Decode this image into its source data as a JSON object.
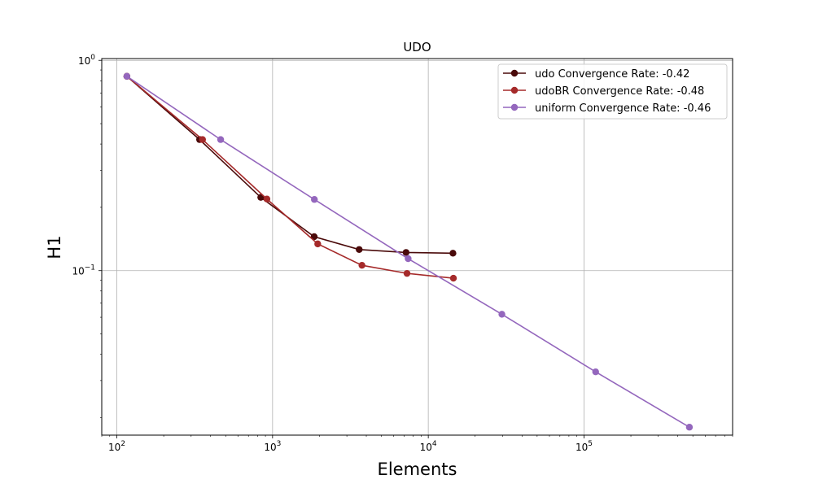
{
  "chart_data": {
    "type": "line",
    "title": "UDO",
    "xlabel": "Elements",
    "ylabel": "H1",
    "xscale": "log",
    "yscale": "log",
    "xlim": [
      80,
      900000
    ],
    "ylim": [
      0.0165,
      1.02
    ],
    "grid": true,
    "legend_position": "top-right",
    "x_major_ticks": [
      {
        "value": 100,
        "base": "10",
        "exp": "2"
      },
      {
        "value": 1000,
        "base": "10",
        "exp": "3"
      },
      {
        "value": 10000,
        "base": "10",
        "exp": "4"
      },
      {
        "value": 100000,
        "base": "10",
        "exp": "5"
      }
    ],
    "y_major_ticks": [
      {
        "value": 1,
        "base": "10",
        "exp": "0"
      },
      {
        "value": 0.1,
        "base": "10",
        "exp": "−1"
      }
    ],
    "series": [
      {
        "name": "udo Convergence Rate: -0.42",
        "color": "#4a0a0a",
        "x": [
          116,
          340,
          840,
          1850,
          3600,
          7200,
          14400
        ],
        "y": [
          0.84,
          0.42,
          0.223,
          0.145,
          0.126,
          0.122,
          0.121
        ]
      },
      {
        "name": "udoBR Convergence Rate: -0.48",
        "color": "#a52a2a",
        "x": [
          116,
          355,
          920,
          1950,
          3750,
          7300,
          14500
        ],
        "y": [
          0.84,
          0.42,
          0.219,
          0.134,
          0.106,
          0.097,
          0.092
        ]
      },
      {
        "name": "uniform Convergence Rate: -0.46",
        "color": "#9467bd",
        "x": [
          116,
          464,
          1856,
          7424,
          29696,
          118784,
          475136
        ],
        "y": [
          0.84,
          0.42,
          0.218,
          0.114,
          0.062,
          0.033,
          0.018
        ]
      }
    ]
  }
}
